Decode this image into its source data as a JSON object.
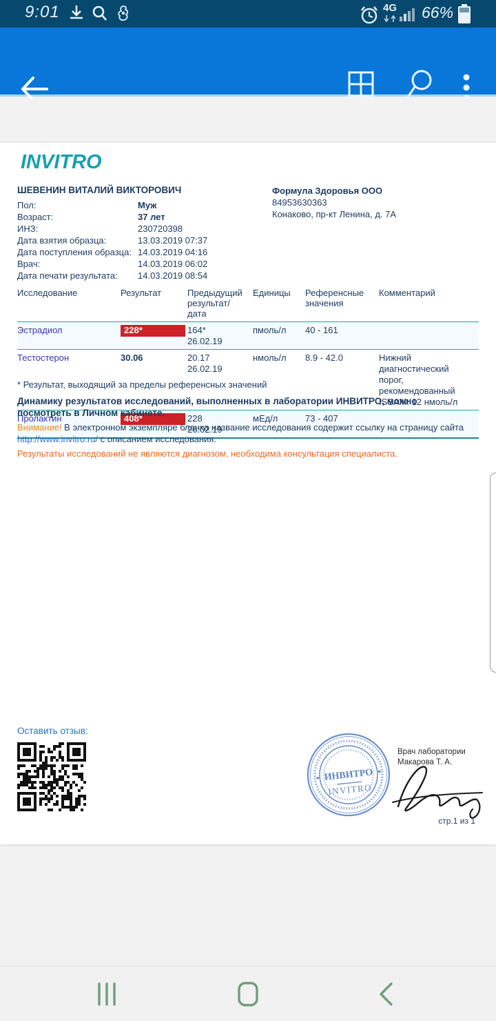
{
  "status_bar": {
    "time": "9:01",
    "network": "4G",
    "battery": "66%"
  },
  "document": {
    "logo": "INVITRO",
    "patient": {
      "name": "ШЕВЕНИН ВИТАЛИЙ ВИКТОРОВИЧ",
      "rows": [
        {
          "label": "Пол:",
          "value": "Муж"
        },
        {
          "label": "Возраст:",
          "value": "37 лет"
        },
        {
          "label": "ИНЗ:",
          "value": "230720398"
        },
        {
          "label": "Дата взятия образца:",
          "value": "13.03.2019 07:37"
        },
        {
          "label": "Дата поступления образца:",
          "value": "14.03.2019 04:16"
        },
        {
          "label": "Врач:",
          "value": "14.03.2019 06:02"
        },
        {
          "label": "Дата печати результата:",
          "value": "14.03.2019 08:54"
        }
      ]
    },
    "clinic": {
      "name": "Формула Здоровья ООО",
      "phone": "84953630363",
      "address": "Конаково, пр-кт Ленина, д. 7А"
    },
    "table": {
      "headers": [
        "Исследование",
        "Результат",
        "Предыдущий результат/дата",
        "Единицы",
        "Референсные значения",
        "Комментарий"
      ],
      "rows": [
        {
          "name": "Эстрадиол",
          "result": "228*",
          "flagged": true,
          "prev": "164*",
          "prev_date": "26.02.19",
          "units": "пмоль/л",
          "ref": "40 - 161",
          "comment": ""
        },
        {
          "name": "Тестостерон",
          "result": "30.06",
          "flagged": false,
          "prev": "20.17",
          "prev_date": "26.02.19",
          "units": "нмоль/л",
          "ref": "8.9 - 42.0",
          "comment": "Нижний диагностический порог, рекомендованный ISSAM: 12 нмоль/л"
        },
        {
          "name": "Пролактин",
          "result": "408*",
          "flagged": true,
          "prev": "228",
          "prev_date": "26.02.19",
          "units": "мЕд/л",
          "ref": "73 - 407",
          "comment": ""
        }
      ]
    },
    "footnote": "* Результат, выходящий за пределы референсных значений",
    "dynamics": "Динамику результатов исследований, выполненных в лаборатории ИНВИТРО, можно посмотреть в Личном кабинете.",
    "attention_label": "Внимание!",
    "attention_text": " В электронном экземпляре бланка название исследования содержит ссылку на страницу сайта ",
    "attention_link": "http://www.invitro.ru/",
    "attention_tail": " с описанием исследования.",
    "disclaimer": "Результаты исследований не являются диагнозом, необходима консультация специалиста.",
    "feedback_label": "Оставить отзыв:",
    "stamp": {
      "line1": "ИНВИТРО",
      "line2": "INVITRO"
    },
    "doctor_line1": "Врач лаборатории",
    "doctor_line2": "Макарова Т. А.",
    "page_number": "стр.1 из 1"
  },
  "colors": {
    "brand_teal": "#17a0ae",
    "app_bar_blue": "#0877d9",
    "status_bar_navy": "#07486f",
    "flag_red": "#cc2127",
    "warning_orange": "#ed7d31",
    "link_blue": "#2a6fd0",
    "nav_green": "#6f9e7a",
    "document_navy": "#1c3a5f"
  }
}
